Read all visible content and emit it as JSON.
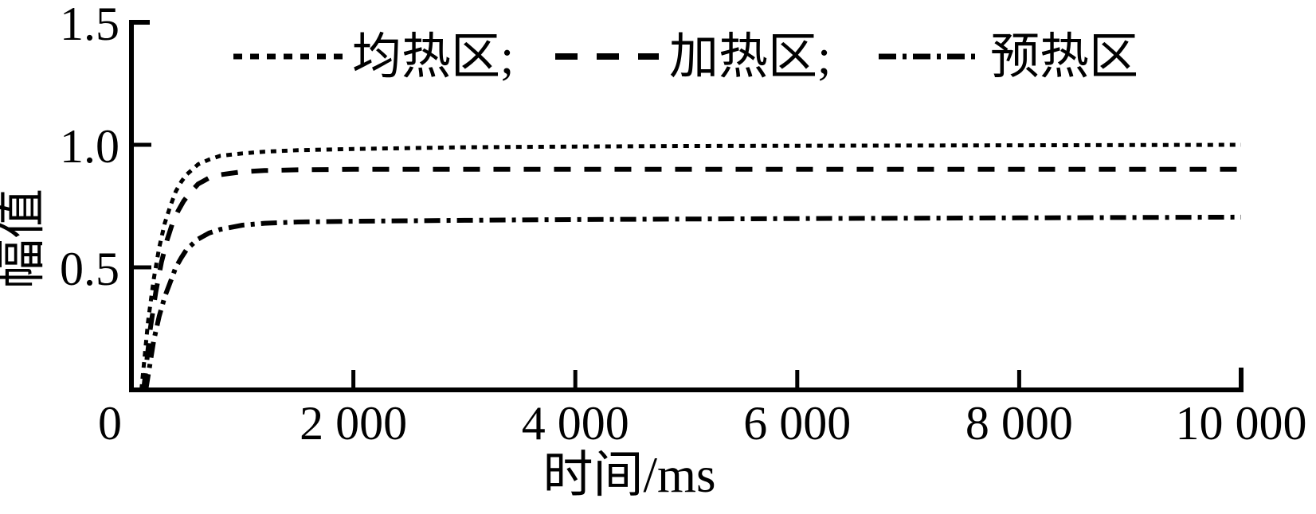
{
  "figure": {
    "background_color": "#ffffff",
    "foreground_color": "#000000"
  },
  "chart_data": {
    "type": "line",
    "title": "",
    "xlabel": "时间/ms",
    "ylabel": "幅值",
    "xlim": [
      0,
      10000
    ],
    "ylim": [
      0,
      1.5
    ],
    "grid": false,
    "legend_position": "top",
    "x_ticks": [
      0,
      2000,
      4000,
      6000,
      8000,
      10000
    ],
    "x_tick_labels": [
      "0",
      "2 000",
      "4 000",
      "6 000",
      "8 000",
      "10 000"
    ],
    "y_ticks": [
      0.5,
      1.0,
      1.5
    ],
    "y_tick_labels": [
      "0.5",
      "1.0",
      "1.5"
    ],
    "series": [
      {
        "name": "均热区",
        "legend_label": "均热区;",
        "line_style": "dotted",
        "color": "#000000",
        "saturation_value": 1.0,
        "points": [
          [
            90,
            0
          ],
          [
            150,
            0.28
          ],
          [
            200,
            0.45
          ],
          [
            250,
            0.58
          ],
          [
            300,
            0.68
          ],
          [
            350,
            0.75
          ],
          [
            400,
            0.81
          ],
          [
            450,
            0.85
          ],
          [
            500,
            0.88
          ],
          [
            600,
            0.92
          ],
          [
            700,
            0.94
          ],
          [
            800,
            0.955
          ],
          [
            1000,
            0.965
          ],
          [
            1200,
            0.972
          ],
          [
            1500,
            0.978
          ],
          [
            2000,
            0.983
          ],
          [
            3000,
            0.99
          ],
          [
            4000,
            0.993
          ],
          [
            5000,
            0.995
          ],
          [
            6000,
            0.996
          ],
          [
            7000,
            0.997
          ],
          [
            8000,
            0.998
          ],
          [
            9000,
            0.999
          ],
          [
            10000,
            1.0
          ]
        ]
      },
      {
        "name": "加热区",
        "legend_label": "加热区;",
        "line_style": "dashed",
        "color": "#000000",
        "saturation_value": 0.9,
        "points": [
          [
            110,
            0
          ],
          [
            170,
            0.25
          ],
          [
            220,
            0.4
          ],
          [
            270,
            0.52
          ],
          [
            320,
            0.61
          ],
          [
            370,
            0.68
          ],
          [
            420,
            0.73
          ],
          [
            470,
            0.77
          ],
          [
            520,
            0.8
          ],
          [
            600,
            0.84
          ],
          [
            700,
            0.865
          ],
          [
            800,
            0.878
          ],
          [
            1000,
            0.89
          ],
          [
            1200,
            0.895
          ],
          [
            1500,
            0.898
          ],
          [
            2000,
            0.9
          ],
          [
            3000,
            0.9
          ],
          [
            4000,
            0.9
          ],
          [
            5000,
            0.9
          ],
          [
            6000,
            0.9
          ],
          [
            7000,
            0.9
          ],
          [
            8000,
            0.9
          ],
          [
            9000,
            0.9
          ],
          [
            10000,
            0.9
          ]
        ]
      },
      {
        "name": "预热区",
        "legend_label": "预热区",
        "line_style": "dashdot",
        "color": "#000000",
        "saturation_value": 0.7,
        "points": [
          [
            130,
            0
          ],
          [
            200,
            0.2
          ],
          [
            250,
            0.3
          ],
          [
            300,
            0.38
          ],
          [
            350,
            0.44
          ],
          [
            400,
            0.5
          ],
          [
            450,
            0.54
          ],
          [
            500,
            0.575
          ],
          [
            600,
            0.615
          ],
          [
            700,
            0.64
          ],
          [
            800,
            0.655
          ],
          [
            1000,
            0.672
          ],
          [
            1200,
            0.68
          ],
          [
            1500,
            0.685
          ],
          [
            2000,
            0.688
          ],
          [
            3000,
            0.692
          ],
          [
            4000,
            0.695
          ],
          [
            5000,
            0.697
          ],
          [
            6000,
            0.699
          ],
          [
            8000,
            0.702
          ],
          [
            10000,
            0.705
          ]
        ]
      }
    ]
  }
}
